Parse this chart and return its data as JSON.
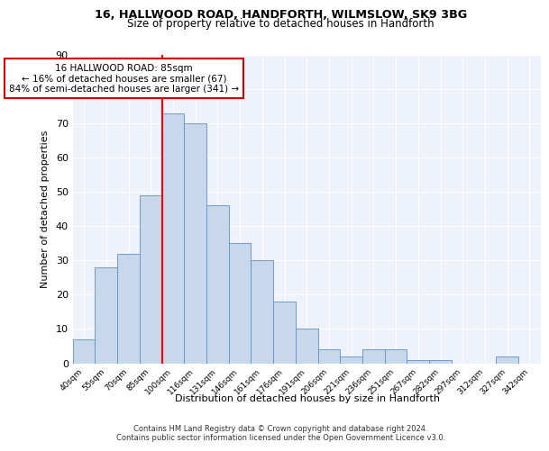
{
  "title1": "16, HALLWOOD ROAD, HANDFORTH, WILMSLOW, SK9 3BG",
  "title2": "Size of property relative to detached houses in Handforth",
  "xlabel": "Distribution of detached houses by size in Handforth",
  "ylabel": "Number of detached properties",
  "bins": [
    "40sqm",
    "55sqm",
    "70sqm",
    "85sqm",
    "100sqm",
    "116sqm",
    "131sqm",
    "146sqm",
    "161sqm",
    "176sqm",
    "191sqm",
    "206sqm",
    "221sqm",
    "236sqm",
    "251sqm",
    "267sqm",
    "282sqm",
    "297sqm",
    "312sqm",
    "327sqm",
    "342sqm"
  ],
  "values": [
    7,
    28,
    32,
    49,
    73,
    70,
    46,
    35,
    30,
    18,
    10,
    4,
    2,
    4,
    4,
    1,
    1,
    0,
    0,
    2,
    0
  ],
  "bar_color": "#c8d8ec",
  "bar_edge_color": "#6090c0",
  "vline_color": "red",
  "annotation_text": "16 HALLWOOD ROAD: 85sqm\n← 16% of detached houses are smaller (67)\n84% of semi-detached houses are larger (341) →",
  "annotation_box_color": "white",
  "annotation_box_edge": "#cc0000",
  "ylim": [
    0,
    90
  ],
  "yticks": [
    0,
    10,
    20,
    30,
    40,
    50,
    60,
    70,
    80,
    90
  ],
  "bg_color": "#eef2fa",
  "footer1": "Contains HM Land Registry data © Crown copyright and database right 2024.",
  "footer2": "Contains public sector information licensed under the Open Government Licence v3.0."
}
